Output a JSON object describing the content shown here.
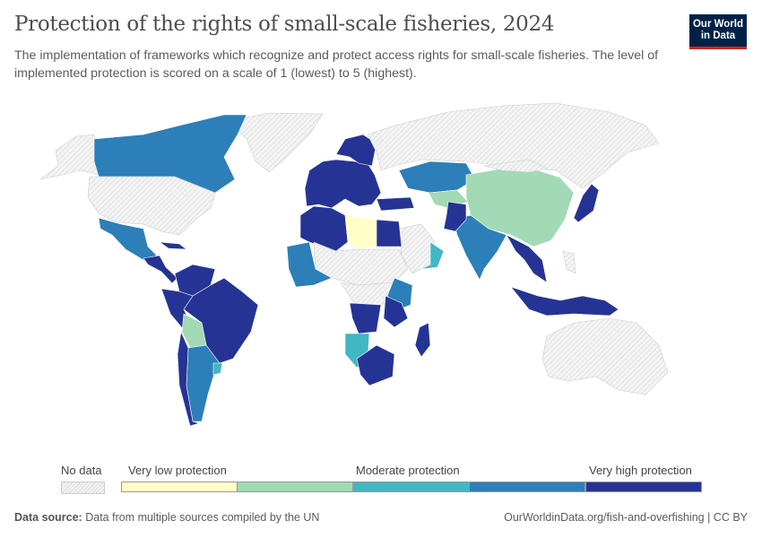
{
  "title": "Protection of the rights of small-scale fisheries, 2024",
  "subtitle": "The implementation of frameworks which recognize and protect access rights for small-scale fisheries. The level of implemented protection is scored on a scale of 1 (lowest) to 5 (highest).",
  "logo": {
    "line1": "Our World",
    "line2": "in Data"
  },
  "legend": {
    "no_data": "No data",
    "labels": [
      "Very low protection",
      "Moderate protection",
      "Very high protection"
    ],
    "colors": [
      "#ffffc7",
      "#a1dab4",
      "#41b6c4",
      "#2c7fb8",
      "#253494"
    ],
    "no_data_color": "#e8e8e8"
  },
  "map": {
    "regions": [
      {
        "name": "Greenland",
        "level": null
      },
      {
        "name": "Alaska",
        "level": null
      },
      {
        "name": "Canada",
        "level": 4
      },
      {
        "name": "United States",
        "level": null
      },
      {
        "name": "Mexico",
        "level": 4
      },
      {
        "name": "Central America",
        "level": 5
      },
      {
        "name": "Cuba",
        "level": 5
      },
      {
        "name": "Colombia & Venezuela",
        "level": 5
      },
      {
        "name": "Brazil",
        "level": 5
      },
      {
        "name": "Peru",
        "level": 5
      },
      {
        "name": "Bolivia",
        "level": 2
      },
      {
        "name": "Argentina",
        "level": 4
      },
      {
        "name": "Chile",
        "level": 5
      },
      {
        "name": "Uruguay",
        "level": 3
      },
      {
        "name": "Europe",
        "level": 5
      },
      {
        "name": "Scandinavia",
        "level": 5
      },
      {
        "name": "Russia",
        "level": null
      },
      {
        "name": "Turkey",
        "level": 5
      },
      {
        "name": "Kazakhstan",
        "level": 4
      },
      {
        "name": "Central Asia",
        "level": 2
      },
      {
        "name": "China",
        "level": 2
      },
      {
        "name": "Mongolia",
        "level": null
      },
      {
        "name": "India",
        "level": 4
      },
      {
        "name": "Pakistan",
        "level": 5
      },
      {
        "name": "Southeast Asia",
        "level": 5
      },
      {
        "name": "Japan",
        "level": 5
      },
      {
        "name": "Indonesia",
        "level": 5
      },
      {
        "name": "Philippines",
        "level": null
      },
      {
        "name": "Australia",
        "level": null
      },
      {
        "name": "Arabian Peninsula",
        "level": null
      },
      {
        "name": "Oman",
        "level": 3
      },
      {
        "name": "Algeria & Morocco",
        "level": 5
      },
      {
        "name": "Libya",
        "level": 1
      },
      {
        "name": "Egypt",
        "level": 5
      },
      {
        "name": "Sahel",
        "level": null
      },
      {
        "name": "West Africa",
        "level": 4
      },
      {
        "name": "Central Africa",
        "level": null
      },
      {
        "name": "DR Congo",
        "level": 5
      },
      {
        "name": "East Africa",
        "level": 4
      },
      {
        "name": "Tanzania",
        "level": 5
      },
      {
        "name": "Namibia",
        "level": 3
      },
      {
        "name": "South Africa",
        "level": 5
      },
      {
        "name": "Madagascar",
        "level": 5
      }
    ]
  },
  "footer": {
    "source_label": "Data source:",
    "source_text": "Data from multiple sources compiled by the UN",
    "url": "OurWorldinData.org/fish-and-overfishing | CC BY"
  }
}
